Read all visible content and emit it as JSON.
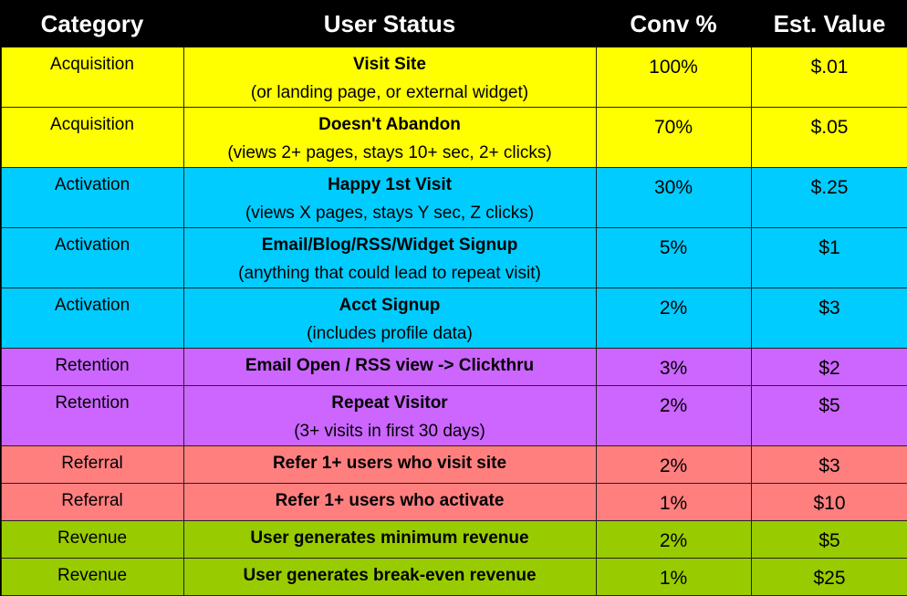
{
  "table": {
    "header": [
      "Category",
      "User Status",
      "Conv %",
      "Est. Value"
    ],
    "rows": [
      {
        "category": "Acquisition",
        "title": "Visit Site",
        "subtitle": "(or landing page, or external widget)",
        "conv": "100%",
        "value": "$.01",
        "color": "#ffff00"
      },
      {
        "category": "Acquisition",
        "title": "Doesn't Abandon",
        "subtitle": "(views 2+ pages, stays 10+ sec, 2+ clicks)",
        "conv": "70%",
        "value": "$.05",
        "color": "#ffff00"
      },
      {
        "category": "Activation",
        "title": "Happy 1st Visit",
        "subtitle": "(views X pages, stays Y sec, Z clicks)",
        "conv": "30%",
        "value": "$.25",
        "color": "#00ccff"
      },
      {
        "category": "Activation",
        "title": "Email/Blog/RSS/Widget Signup",
        "subtitle": "(anything that could lead to repeat visit)",
        "conv": "5%",
        "value": "$1",
        "color": "#00ccff"
      },
      {
        "category": "Activation",
        "title": "Acct Signup",
        "subtitle": "(includes profile data)",
        "conv": "2%",
        "value": "$3",
        "color": "#00ccff"
      },
      {
        "category": "Retention",
        "title": "Email Open / RSS view -> Clickthru",
        "conv": "3%",
        "value": "$2",
        "color": "#cc66ff"
      },
      {
        "category": "Retention",
        "title": "Repeat Visitor",
        "subtitle": "(3+ visits in first 30 days)",
        "conv": "2%",
        "value": "$5",
        "color": "#cc66ff"
      },
      {
        "category": "Referral",
        "title": "Refer 1+ users who visit site",
        "conv": "2%",
        "value": "$3",
        "color": "#ff7f7f"
      },
      {
        "category": "Referral",
        "title": "Refer 1+ users who activate",
        "conv": "1%",
        "value": "$10",
        "color": "#ff7f7f"
      },
      {
        "category": "Revenue",
        "title": "User generates minimum revenue",
        "conv": "2%",
        "value": "$5",
        "color": "#99cc00"
      },
      {
        "category": "Revenue",
        "title": "User generates break-even revenue",
        "conv": "1%",
        "value": "$25",
        "color": "#99cc00"
      }
    ]
  }
}
